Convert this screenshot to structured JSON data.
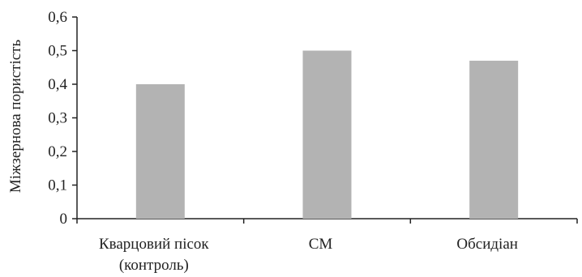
{
  "chart_data": {
    "type": "bar",
    "title": "",
    "xlabel": "",
    "ylabel": "Міжзернова пористість",
    "categories": [
      [
        "Кварцовий пісок",
        "(контроль)"
      ],
      [
        "СМ"
      ],
      [
        "Обсидіан"
      ]
    ],
    "values": [
      0.4,
      0.5,
      0.47
    ],
    "ylim": [
      0,
      0.6
    ],
    "yticks": [
      "0",
      "0,1",
      "0,2",
      "0,3",
      "0,4",
      "0,5",
      "0,6"
    ],
    "bar_color": "#b3b3b3",
    "axis_color": "#222222",
    "grid": false,
    "legend": "none"
  }
}
